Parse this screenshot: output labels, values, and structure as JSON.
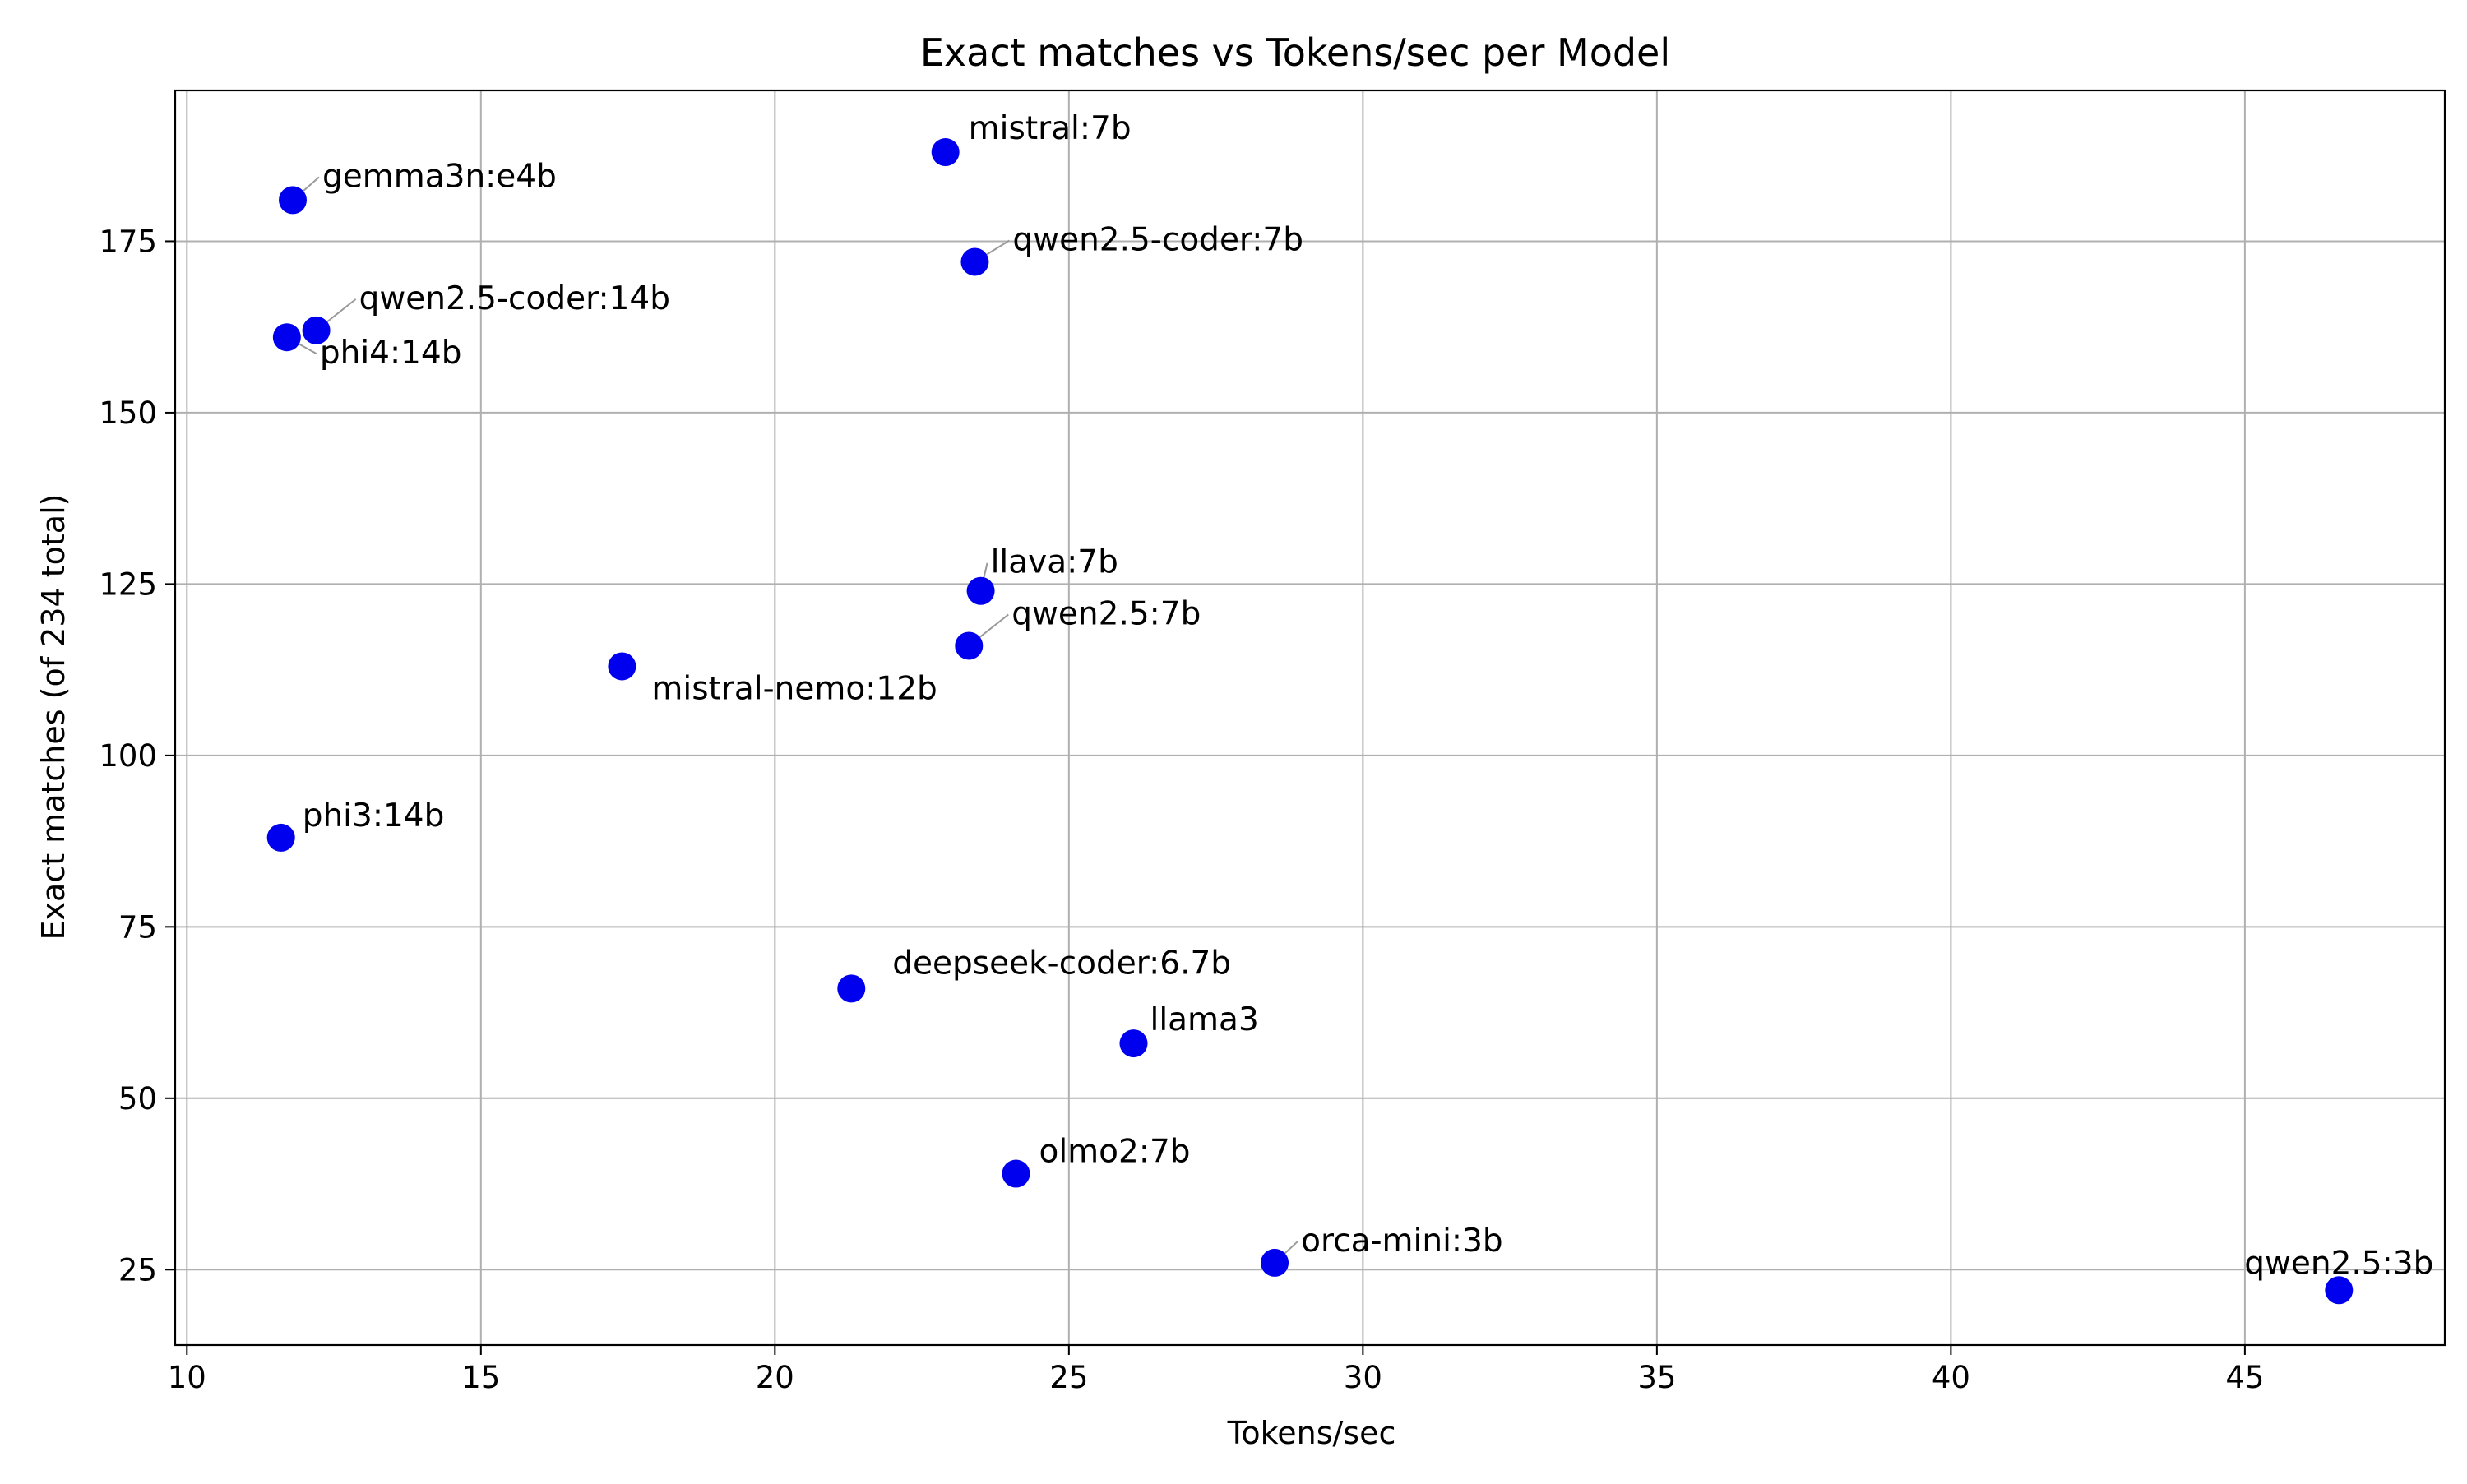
{
  "chart_data": {
    "type": "scatter",
    "title": "Exact matches vs Tokens/sec per Model",
    "xlabel": "Tokens/sec",
    "ylabel": "Exact matches (of 234 total)",
    "xlim": [
      9.8,
      48.4
    ],
    "ylim": [
      14,
      197
    ],
    "xticks": [
      10,
      15,
      20,
      25,
      30,
      35,
      40,
      45
    ],
    "yticks": [
      25,
      50,
      75,
      100,
      125,
      150,
      175
    ],
    "grid": true,
    "marker_color": "#0000ee",
    "leader_color": "#9a9a9a",
    "points": [
      {
        "label": "mistral:7b",
        "x": 22.9,
        "y": 188
      },
      {
        "label": "gemma3n:e4b",
        "x": 11.8,
        "y": 181
      },
      {
        "label": "qwen2.5-coder:7b",
        "x": 23.4,
        "y": 172
      },
      {
        "label": "qwen2.5-coder:14b",
        "x": 12.2,
        "y": 162
      },
      {
        "label": "phi4:14b",
        "x": 11.7,
        "y": 161
      },
      {
        "label": "llava:7b",
        "x": 23.5,
        "y": 124
      },
      {
        "label": "qwen2.5:7b",
        "x": 23.3,
        "y": 116
      },
      {
        "label": "mistral-nemo:12b",
        "x": 17.4,
        "y": 113
      },
      {
        "label": "phi3:14b",
        "x": 11.6,
        "y": 88
      },
      {
        "label": "deepseek-coder:6.7b",
        "x": 21.3,
        "y": 66
      },
      {
        "label": "llama3",
        "x": 26.1,
        "y": 58
      },
      {
        "label": "olmo2:7b",
        "x": 24.1,
        "y": 39
      },
      {
        "label": "orca-mini:3b",
        "x": 28.5,
        "y": 26
      },
      {
        "label": "qwen2.5:3b",
        "x": 46.6,
        "y": 22
      }
    ]
  }
}
